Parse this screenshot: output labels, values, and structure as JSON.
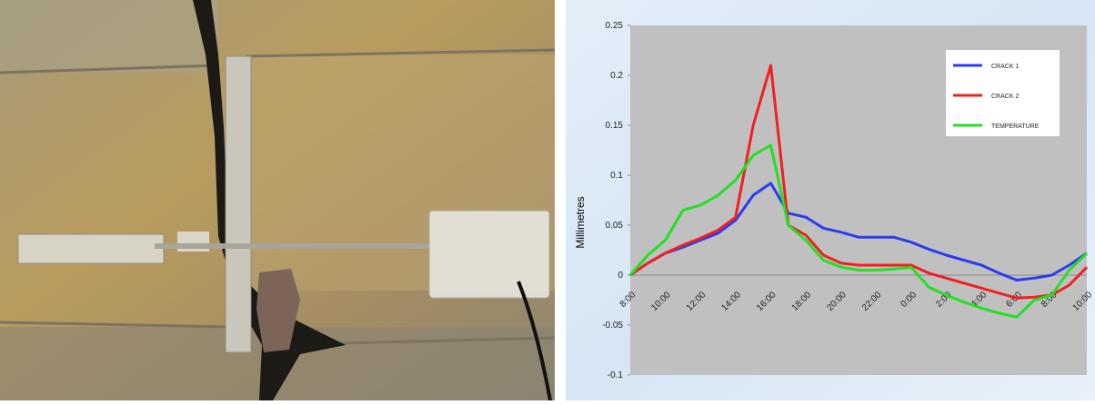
{
  "chart_data": {
    "type": "line",
    "y_label": "Millimetres",
    "categories": [
      "8:00",
      null,
      "10:00",
      null,
      "12:00",
      null,
      "14:00",
      null,
      "16:00",
      null,
      "18:00",
      null,
      "20:00",
      null,
      "22:00",
      null,
      "0:00",
      null,
      "2:00",
      null,
      "4:00",
      null,
      "6:00",
      null,
      "8:00",
      null,
      "10:00"
    ],
    "series": [
      {
        "name": "CRACK 1",
        "color": "#2b3cf0",
        "values": [
          0,
          0.012,
          0.022,
          0.028,
          0.035,
          0.042,
          0.055,
          0.08,
          0.092,
          0.062,
          0.058,
          0.047,
          0.043,
          0.038,
          0.038,
          0.038,
          0.033,
          0.026,
          0.02,
          0.015,
          0.01,
          0.002,
          -0.005,
          -0.003,
          0,
          0.01,
          0.022
        ]
      },
      {
        "name": "CRACK 2",
        "color": "#f02020",
        "values": [
          0,
          0.012,
          0.022,
          0.03,
          0.037,
          0.045,
          0.058,
          0.15,
          0.21,
          0.05,
          0.04,
          0.02,
          0.012,
          0.01,
          0.01,
          0.01,
          0.01,
          0.002,
          -0.003,
          -0.008,
          -0.013,
          -0.018,
          -0.023,
          -0.022,
          -0.02,
          -0.01,
          0.008
        ]
      },
      {
        "name": "TEMPERATURE",
        "color": "#22e022",
        "values": [
          0,
          0.02,
          0.035,
          0.065,
          0.07,
          0.08,
          0.095,
          0.12,
          0.13,
          0.05,
          0.035,
          0.015,
          0.008,
          0.005,
          0.005,
          0.006,
          0.008,
          -0.012,
          -0.02,
          -0.027,
          -0.033,
          -0.038,
          -0.042,
          -0.025,
          -0.02,
          0.005,
          0.022
        ]
      }
    ],
    "ylim": [
      -0.1,
      0.25
    ],
    "yticks": [
      -0.1,
      -0.05,
      0,
      0.05,
      0.1,
      0.15,
      0.2,
      0.25
    ],
    "grid": false,
    "legend": "upper-right"
  }
}
